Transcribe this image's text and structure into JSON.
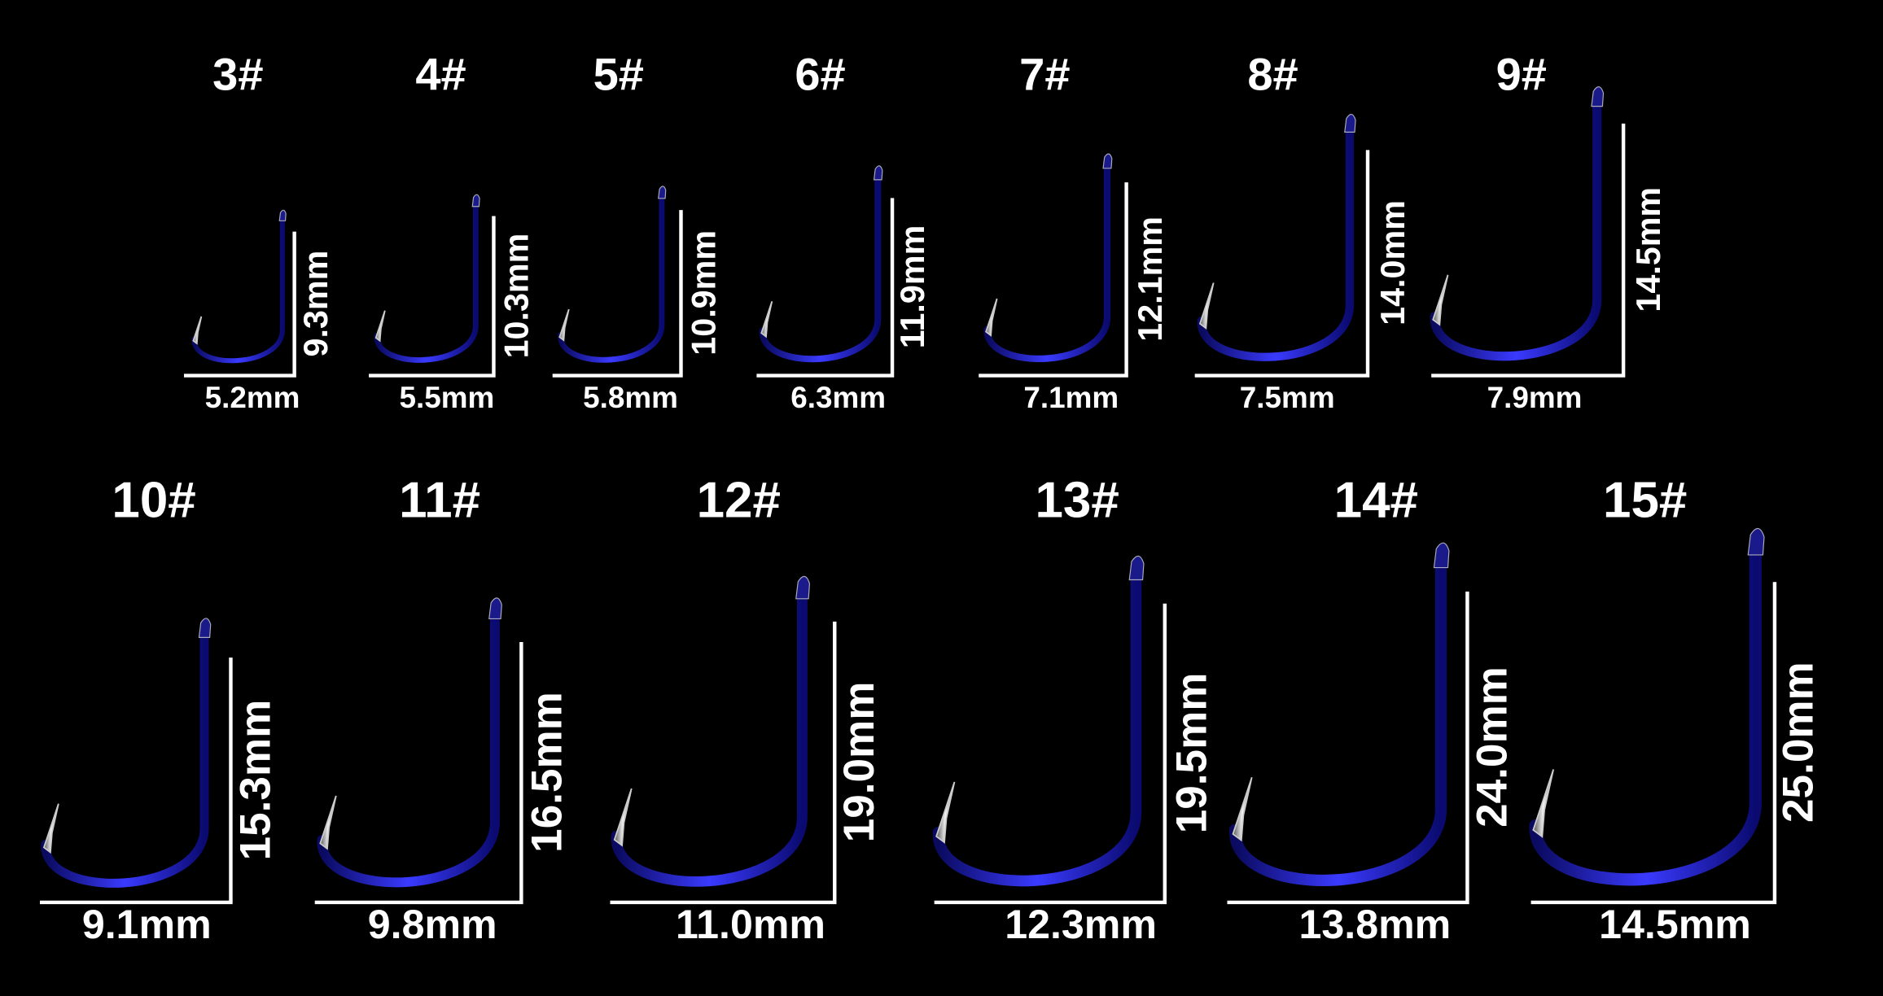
{
  "hooks": [
    {
      "size": "3#",
      "width": "5.2mm",
      "height": "9.3mm"
    },
    {
      "size": "4#",
      "width": "5.5mm",
      "height": "10.3mm"
    },
    {
      "size": "5#",
      "width": "5.8mm",
      "height": "10.9mm"
    },
    {
      "size": "6#",
      "width": "6.3mm",
      "height": "11.9mm"
    },
    {
      "size": "7#",
      "width": "7.1mm",
      "height": "12.1mm"
    },
    {
      "size": "8#",
      "width": "7.5mm",
      "height": "14.0mm"
    },
    {
      "size": "9#",
      "width": "7.9mm",
      "height": "14.5mm"
    },
    {
      "size": "10#",
      "width": "9.1mm",
      "height": "15.3mm"
    },
    {
      "size": "11#",
      "width": "9.8mm",
      "height": "16.5mm"
    },
    {
      "size": "12#",
      "width": "11.0mm",
      "height": "19.0mm"
    },
    {
      "size": "13#",
      "width": "12.3mm",
      "height": "19.5mm"
    },
    {
      "size": "14#",
      "width": "13.8mm",
      "height": "24.0mm"
    },
    {
      "size": "15#",
      "width": "14.5mm",
      "height": "25.0mm"
    }
  ]
}
